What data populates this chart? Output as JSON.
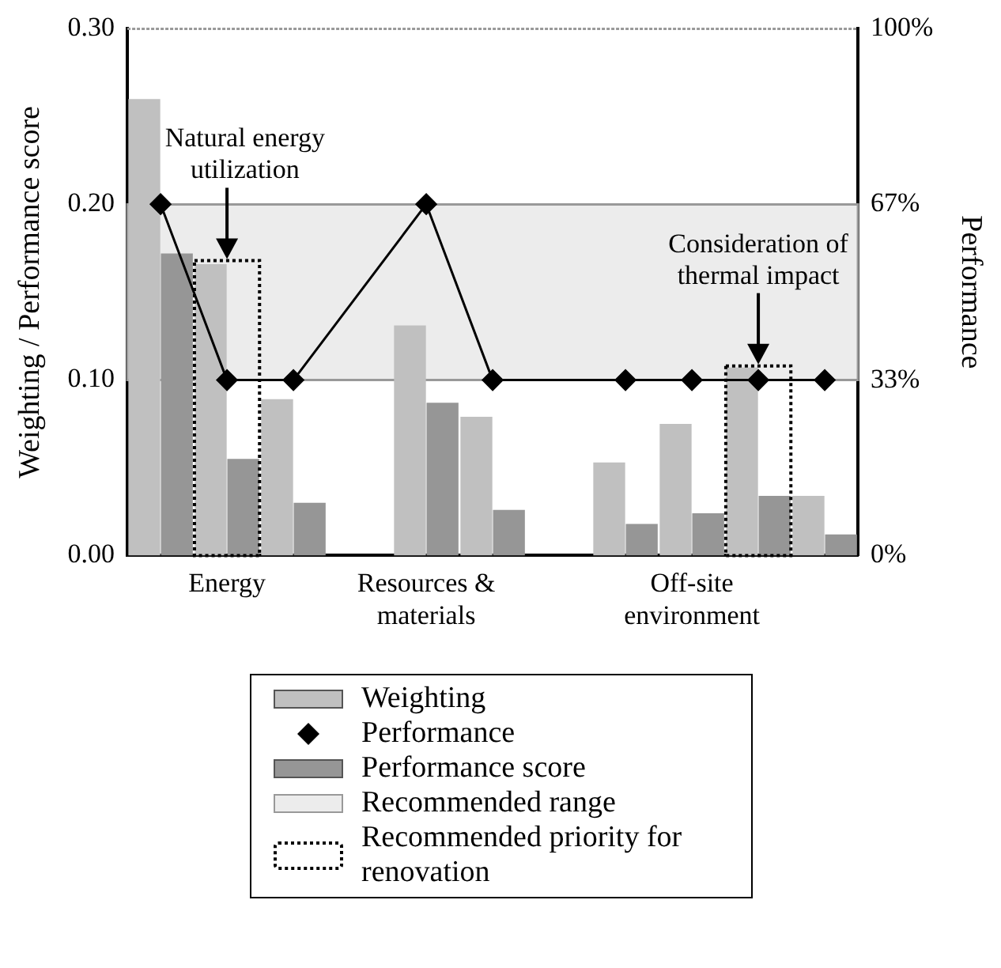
{
  "chart_data": {
    "type": "bar",
    "xlabel": null,
    "ylabel": "Weighting / Performance score",
    "y2label": "Performance",
    "categories": [
      null,
      "Energy",
      null,
      null,
      "Resources & materials",
      null,
      null,
      null,
      "Off-site environment",
      null,
      null
    ],
    "series": [
      {
        "name": "Weighting",
        "color": "#c0c0c0",
        "values": [
          0.26,
          0.166,
          0.089,
          null,
          0.131,
          0.079,
          null,
          0.053,
          0.075,
          0.107,
          0.034
        ]
      },
      {
        "name": "Performance",
        "type": "line",
        "axis": "y2",
        "color": "#000000",
        "marker": "diamond",
        "values": [
          66.7,
          33.3,
          33.3,
          null,
          66.7,
          33.3,
          null,
          33.3,
          33.3,
          33.3,
          33.3
        ]
      },
      {
        "name": "Performance score",
        "color": "#969696",
        "values": [
          0.172,
          0.055,
          0.03,
          null,
          0.087,
          0.026,
          null,
          0.018,
          0.024,
          0.034,
          0.012
        ]
      },
      {
        "name": "Recommended priority for renovation",
        "color": "#000000",
        "line_style": "dotted",
        "values": [
          null,
          0.168,
          null,
          null,
          null,
          null,
          null,
          null,
          null,
          0.108,
          null
        ]
      }
    ],
    "bands": [
      {
        "axis": "y",
        "from": 0.1,
        "to": 0.2,
        "label": "Recommended range",
        "color": "#ececec"
      }
    ],
    "annotations": [
      {
        "text": "Natural energy utilization",
        "y": 0.168
      },
      {
        "text": "Consideration of thermal impact",
        "y": 0.108
      }
    ],
    "ylim": [
      0,
      0.3
    ],
    "yticks": [
      {
        "value": 0,
        "label": "0.00"
      },
      {
        "value": 0.1,
        "label": "0.10"
      },
      {
        "value": 0.2,
        "label": "0.20"
      },
      {
        "value": 0.3,
        "label": "0.30"
      }
    ],
    "y2lim": [
      0,
      100
    ],
    "y2ticks": [
      {
        "value": 0,
        "label": "0%"
      },
      {
        "value": 33.3,
        "label": "33%"
      },
      {
        "value": 66.7,
        "label": "67%"
      },
      {
        "value": 100,
        "label": "100%"
      }
    ],
    "grid": false,
    "legend": "bottom"
  }
}
